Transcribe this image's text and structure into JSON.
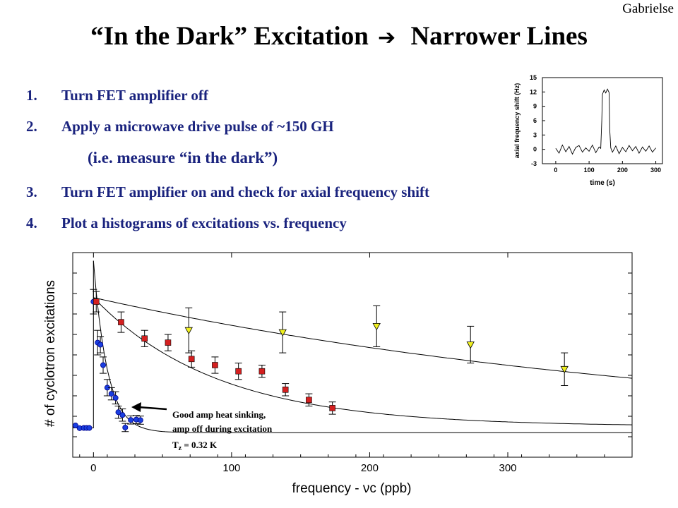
{
  "header": {
    "author": "Gabrielse",
    "title_left": "“In the Dark” Excitation",
    "title_arrow": "➔",
    "title_right": "Narrower Lines"
  },
  "steps": [
    {
      "num": "1.",
      "text": "Turn FET amplifier off"
    },
    {
      "num": "2.",
      "text": "Apply a microwave drive pulse of ~150 GH"
    },
    {
      "num": "",
      "text": "(i.e. measure “in the dark”)"
    },
    {
      "num": "3.",
      "text": "Turn FET amplifier on and check for axial frequency shift"
    },
    {
      "num": "4.",
      "text": "Plot a histograms of excitations vs. frequency"
    }
  ],
  "colors": {
    "steps_text": "#1a237e",
    "blue_points": "#1a3fe0",
    "red_points": "#d42020",
    "yellow_points": "#f0f020"
  },
  "chart_data": [
    {
      "type": "line",
      "xlabel": "time (s)",
      "ylabel": "axial frequency shift (Hz)",
      "xlim": [
        -40,
        320
      ],
      "ylim": [
        -3,
        15
      ],
      "x_ticks": [
        "0",
        "100",
        "200",
        "300"
      ],
      "y_ticks": [
        "-3",
        "0",
        "3",
        "6",
        "9",
        "12",
        "15"
      ],
      "grid": false,
      "series": [
        {
          "x": [
            0,
            10,
            20,
            30,
            40,
            50,
            60,
            70,
            80,
            90,
            100,
            110,
            120,
            130,
            135,
            138,
            140,
            145,
            150,
            155,
            160,
            162,
            165,
            170,
            180,
            190,
            200,
            210,
            220,
            230,
            240,
            250,
            260,
            270,
            280,
            290,
            300
          ],
          "values": [
            0.2,
            -0.8,
            0.9,
            -0.5,
            0.6,
            -1.0,
            0.4,
            0.8,
            -0.6,
            0.3,
            -0.4,
            0.9,
            -0.7,
            0.5,
            0.2,
            6,
            11.5,
            12.4,
            11.8,
            12.6,
            11.9,
            4,
            0.3,
            -0.6,
            0.7,
            -0.9,
            0.4,
            -0.5,
            0.8,
            -0.3,
            0.6,
            -0.8,
            0.5,
            -0.4,
            0.7,
            -0.6,
            0.3
          ]
        }
      ]
    },
    {
      "type": "scatter",
      "xlabel": "frequency - νc (ppb)",
      "ylabel": "# of cyclotron excitations",
      "xlim": [
        -15,
        390
      ],
      "ylim": [
        0,
        100
      ],
      "x_ticks": [
        "0",
        "100",
        "200",
        "300"
      ],
      "grid": false,
      "annotation": {
        "line1": "Good amp heat sinking,",
        "line2": "amp off during excitation",
        "tz_label": "T",
        "tz_sub": "z",
        "tz_value": " = 0.32 K"
      },
      "series": [
        {
          "marker": "circle",
          "x": [
            -13,
            -10,
            -7,
            -5,
            -3,
            0,
            3,
            5,
            7,
            10,
            13,
            16,
            18,
            21,
            23,
            27,
            31,
            34
          ],
          "values": [
            15.5,
            14.2,
            14.3,
            14.3,
            14.3,
            76,
            56,
            55,
            45,
            34,
            31,
            29,
            22,
            20.6,
            14.5,
            18.2,
            18.4,
            18.1
          ],
          "errors": [
            0,
            0,
            0,
            0,
            0,
            6,
            6,
            4,
            4,
            4,
            3,
            3,
            3,
            3,
            2,
            2,
            2,
            2
          ]
        },
        {
          "marker": "square",
          "x": [
            2,
            20,
            37,
            54,
            71,
            88,
            105,
            122,
            139,
            156,
            173
          ],
          "values": [
            76,
            66,
            58,
            56,
            48,
            45,
            42,
            42,
            33,
            28,
            24
          ],
          "errors": [
            5,
            5,
            4,
            4,
            4,
            4,
            4,
            3,
            3,
            3,
            3
          ]
        },
        {
          "marker": "triangle",
          "x": [
            69,
            137,
            205,
            273,
            341
          ],
          "values": [
            62,
            61,
            64,
            55,
            43
          ],
          "errors": [
            11,
            10,
            10,
            9,
            8
          ]
        }
      ]
    }
  ]
}
